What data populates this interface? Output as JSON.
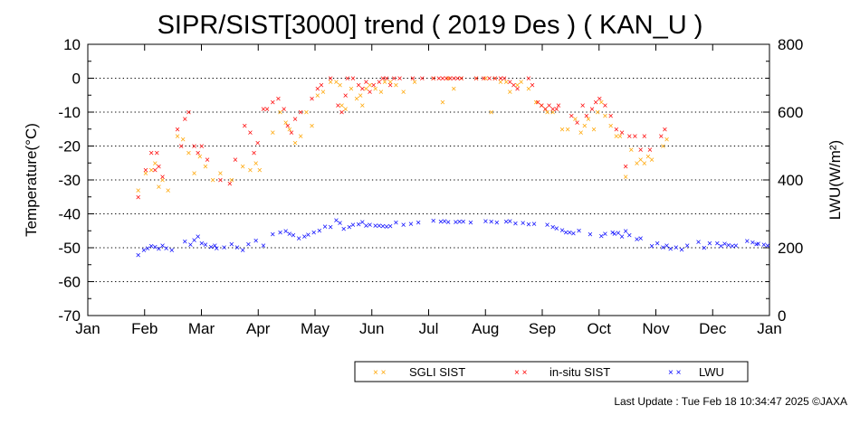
{
  "footer": {
    "last_update": "Last Update : Tue Feb 18 10:34:47 2025  ©JAXA"
  },
  "legend": {
    "box": true
  },
  "colors": {
    "sgli": "#ffa500",
    "insitu": "#ff0000",
    "lwu": "#0000ff",
    "grid": "#000000"
  },
  "chart_data": {
    "type": "scatter",
    "title": "SIPR/SIST[3000] trend ( 2019 Des ) ( KAN_U )",
    "xlabel": "",
    "ylabel": "Temperature(°C)",
    "y2label": "LWU(W/m²)",
    "x_ticks": [
      "Jan",
      "Feb",
      "Mar",
      "Apr",
      "May",
      "Jun",
      "Jul",
      "Aug",
      "Sep",
      "Oct",
      "Nov",
      "Dec",
      "Jan"
    ],
    "xlim": [
      1,
      366
    ],
    "ylim": [
      -70,
      10
    ],
    "y_ticks": [
      10,
      0,
      -10,
      -20,
      -30,
      -40,
      -50,
      -60,
      -70
    ],
    "y2lim": [
      0,
      800
    ],
    "y2_ticks": [
      800,
      600,
      400,
      200,
      0
    ],
    "grid": "horizontal dotted",
    "legend_position": "bottom",
    "series": [
      {
        "name": "SGLI SIST",
        "axis": "left",
        "marker": "x",
        "points": [
          [
            28,
            -33
          ],
          [
            32,
            -28
          ],
          [
            35,
            -27
          ],
          [
            37,
            -25
          ],
          [
            39,
            -32
          ],
          [
            41,
            -30
          ],
          [
            44,
            -33
          ],
          [
            49,
            -17
          ],
          [
            52,
            -18
          ],
          [
            55,
            -22
          ],
          [
            58,
            -28
          ],
          [
            61,
            -23
          ],
          [
            64,
            -26
          ],
          [
            68,
            -30
          ],
          [
            72,
            -28
          ],
          [
            78,
            -30
          ],
          [
            84,
            -26
          ],
          [
            88,
            -27
          ],
          [
            91,
            -25
          ],
          [
            93,
            -27
          ],
          [
            100,
            -16
          ],
          [
            104,
            -10
          ],
          [
            107,
            -13
          ],
          [
            109,
            -15
          ],
          [
            112,
            -19
          ],
          [
            115,
            -17
          ],
          [
            118,
            -10
          ],
          [
            121,
            -14
          ],
          [
            124,
            -5
          ],
          [
            127,
            -4
          ],
          [
            131,
            -1
          ],
          [
            134,
            -1
          ],
          [
            136,
            -2
          ],
          [
            137,
            -8
          ],
          [
            139,
            -9
          ],
          [
            142,
            -3
          ],
          [
            145,
            -6
          ],
          [
            147,
            -5
          ],
          [
            148,
            -8
          ],
          [
            150,
            -3
          ],
          [
            152,
            -2
          ],
          [
            155,
            -3
          ],
          [
            158,
            -4
          ],
          [
            160,
            -1
          ],
          [
            163,
            -1
          ],
          [
            166,
            -2
          ],
          [
            170,
            -4
          ],
          [
            176,
            -1
          ],
          [
            186,
            0
          ],
          [
            191,
            -7
          ],
          [
            194,
            0
          ],
          [
            197,
            -3
          ],
          [
            201,
            0
          ],
          [
            209,
            0
          ],
          [
            214,
            0
          ],
          [
            217,
            -10
          ],
          [
            219,
            0
          ],
          [
            222,
            -1
          ],
          [
            225,
            -1
          ],
          [
            227,
            -4
          ],
          [
            231,
            -2
          ],
          [
            233,
            -1
          ],
          [
            237,
            -3
          ],
          [
            241,
            -7
          ],
          [
            244,
            -8
          ],
          [
            246,
            -9
          ],
          [
            247,
            -10
          ],
          [
            250,
            -10
          ],
          [
            255,
            -15
          ],
          [
            258,
            -15
          ],
          [
            262,
            -12
          ],
          [
            265,
            -16
          ],
          [
            267,
            -14
          ],
          [
            269,
            -12
          ],
          [
            272,
            -15
          ],
          [
            274,
            -10
          ],
          [
            276,
            -7
          ],
          [
            278,
            -11
          ],
          [
            281,
            -14
          ],
          [
            284,
            -17
          ],
          [
            286,
            -17
          ],
          [
            289,
            -29
          ],
          [
            292,
            -21
          ],
          [
            295,
            -25
          ],
          [
            297,
            -24
          ],
          [
            299,
            -25
          ],
          [
            301,
            -23
          ],
          [
            303,
            -24
          ],
          [
            309,
            -20
          ],
          [
            311,
            -18
          ]
        ]
      },
      {
        "name": "in-situ SIST",
        "axis": "left",
        "marker": "x",
        "points": [
          [
            28,
            -35
          ],
          [
            32,
            -27
          ],
          [
            35,
            -22
          ],
          [
            37,
            -27
          ],
          [
            38,
            -22
          ],
          [
            39,
            -26
          ],
          [
            41,
            -29
          ],
          [
            49,
            -15
          ],
          [
            51,
            -20
          ],
          [
            53,
            -12
          ],
          [
            55,
            -10
          ],
          [
            58,
            -20
          ],
          [
            60,
            -22
          ],
          [
            62,
            -20
          ],
          [
            65,
            -24
          ],
          [
            72,
            -30
          ],
          [
            77,
            -31
          ],
          [
            80,
            -24
          ],
          [
            85,
            -14
          ],
          [
            88,
            -16
          ],
          [
            90,
            -22
          ],
          [
            92,
            -19
          ],
          [
            95,
            -9
          ],
          [
            97,
            -9
          ],
          [
            100,
            -7
          ],
          [
            103,
            -6
          ],
          [
            106,
            -9
          ],
          [
            108,
            -14
          ],
          [
            110,
            -16
          ],
          [
            112,
            -12
          ],
          [
            115,
            -10
          ],
          [
            121,
            -6
          ],
          [
            124,
            -3
          ],
          [
            126,
            -2
          ],
          [
            131,
            0
          ],
          [
            135,
            -8
          ],
          [
            137,
            -10
          ],
          [
            139,
            -5
          ],
          [
            140,
            0
          ],
          [
            143,
            0
          ],
          [
            146,
            -2
          ],
          [
            148,
            -3
          ],
          [
            150,
            -1
          ],
          [
            152,
            -4
          ],
          [
            154,
            -2
          ],
          [
            157,
            -1
          ],
          [
            159,
            0
          ],
          [
            161,
            0
          ],
          [
            163,
            -2
          ],
          [
            165,
            0
          ],
          [
            168,
            0
          ],
          [
            175,
            0
          ],
          [
            180,
            0
          ],
          [
            186,
            0
          ],
          [
            189,
            0
          ],
          [
            191,
            0
          ],
          [
            193,
            0
          ],
          [
            195,
            0
          ],
          [
            197,
            0
          ],
          [
            199,
            0
          ],
          [
            201,
            0
          ],
          [
            209,
            0
          ],
          [
            213,
            0
          ],
          [
            216,
            0
          ],
          [
            219,
            0
          ],
          [
            222,
            0
          ],
          [
            224,
            0
          ],
          [
            227,
            -1
          ],
          [
            229,
            -2
          ],
          [
            231,
            -3
          ],
          [
            237,
            0
          ],
          [
            239,
            -2
          ],
          [
            242,
            -7
          ],
          [
            244,
            -8
          ],
          [
            246,
            -9
          ],
          [
            248,
            -8
          ],
          [
            250,
            -9
          ],
          [
            252,
            -9
          ],
          [
            253,
            -8
          ],
          [
            260,
            -11
          ],
          [
            263,
            -13
          ],
          [
            266,
            -8
          ],
          [
            268,
            -11
          ],
          [
            271,
            -9
          ],
          [
            273,
            -7
          ],
          [
            275,
            -6
          ],
          [
            278,
            -8
          ],
          [
            281,
            -11
          ],
          [
            284,
            -15
          ],
          [
            287,
            -16
          ],
          [
            289,
            -26
          ],
          [
            291,
            -17
          ],
          [
            294,
            -17
          ],
          [
            297,
            -21
          ],
          [
            299,
            -17
          ],
          [
            302,
            -21
          ],
          [
            308,
            -17
          ],
          [
            310,
            -15
          ]
        ]
      },
      {
        "name": "LWU",
        "axis": "right",
        "marker": "x",
        "points": [
          [
            28,
            179
          ],
          [
            31,
            193
          ],
          [
            33,
            199
          ],
          [
            35,
            205
          ],
          [
            37,
            203
          ],
          [
            39,
            197
          ],
          [
            41,
            207
          ],
          [
            43,
            199
          ],
          [
            46,
            193
          ],
          [
            53,
            219
          ],
          [
            56,
            209
          ],
          [
            58,
            223
          ],
          [
            60,
            234
          ],
          [
            62,
            213
          ],
          [
            64,
            209
          ],
          [
            67,
            203
          ],
          [
            69,
            207
          ],
          [
            70,
            199
          ],
          [
            74,
            201
          ],
          [
            78,
            211
          ],
          [
            81,
            201
          ],
          [
            84,
            194
          ],
          [
            87,
            211
          ],
          [
            91,
            221
          ],
          [
            95,
            207
          ],
          [
            100,
            240
          ],
          [
            104,
            246
          ],
          [
            107,
            249
          ],
          [
            109,
            242
          ],
          [
            111,
            237
          ],
          [
            114,
            228
          ],
          [
            117,
            233
          ],
          [
            119,
            239
          ],
          [
            122,
            245
          ],
          [
            125,
            251
          ],
          [
            128,
            263
          ],
          [
            131,
            262
          ],
          [
            134,
            282
          ],
          [
            136,
            274
          ],
          [
            138,
            256
          ],
          [
            141,
            262
          ],
          [
            143,
            268
          ],
          [
            146,
            270
          ],
          [
            148,
            276
          ],
          [
            150,
            266
          ],
          [
            152,
            268
          ],
          [
            155,
            265
          ],
          [
            157,
            266
          ],
          [
            159,
            264
          ],
          [
            161,
            263
          ],
          [
            163,
            264
          ],
          [
            166,
            275
          ],
          [
            170,
            268
          ],
          [
            174,
            271
          ],
          [
            178,
            275
          ],
          [
            186,
            280
          ],
          [
            190,
            277
          ],
          [
            192,
            279
          ],
          [
            194,
            276
          ],
          [
            198,
            276
          ],
          [
            200,
            278
          ],
          [
            202,
            277
          ],
          [
            206,
            275
          ],
          [
            214,
            279
          ],
          [
            217,
            277
          ],
          [
            220,
            275
          ],
          [
            225,
            278
          ],
          [
            227,
            279
          ],
          [
            230,
            272
          ],
          [
            234,
            273
          ],
          [
            237,
            270
          ],
          [
            240,
            271
          ],
          [
            247,
            268
          ],
          [
            250,
            261
          ],
          [
            252,
            257
          ],
          [
            255,
            252
          ],
          [
            257,
            246
          ],
          [
            259,
            245
          ],
          [
            261,
            243
          ],
          [
            264,
            251
          ],
          [
            270,
            240
          ],
          [
            276,
            235
          ],
          [
            278,
            241
          ],
          [
            282,
            245
          ],
          [
            283,
            241
          ],
          [
            285,
            244
          ],
          [
            287,
            233
          ],
          [
            289,
            250
          ],
          [
            291,
            237
          ],
          [
            295,
            226
          ],
          [
            297,
            228
          ],
          [
            303,
            206
          ],
          [
            306,
            213
          ],
          [
            309,
            202
          ],
          [
            311,
            207
          ],
          [
            313,
            198
          ],
          [
            316,
            201
          ],
          [
            319,
            195
          ],
          [
            322,
            207
          ],
          [
            328,
            217
          ],
          [
            331,
            200
          ],
          [
            334,
            214
          ],
          [
            338,
            214
          ],
          [
            340,
            205
          ],
          [
            342,
            212
          ],
          [
            344,
            208
          ],
          [
            346,
            206
          ],
          [
            348,
            207
          ],
          [
            354,
            220
          ],
          [
            357,
            216
          ],
          [
            359,
            211
          ],
          [
            360,
            212
          ],
          [
            363,
            209
          ],
          [
            365,
            207
          ]
        ]
      }
    ]
  }
}
